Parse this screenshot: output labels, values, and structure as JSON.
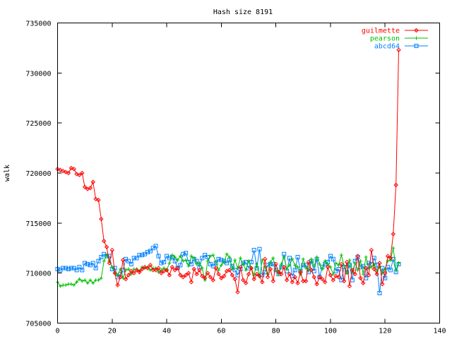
{
  "chart_data": {
    "type": "line",
    "title": "Hash size 8191",
    "xlabel": "",
    "ylabel": "walk",
    "xlim": [
      0,
      140
    ],
    "ylim": [
      705000,
      735000
    ],
    "xticks": [
      "0",
      "20",
      "40",
      "60",
      "80",
      "100",
      "120",
      "140"
    ],
    "yticks": [
      "705000",
      "710000",
      "715000",
      "720000",
      "725000",
      "730000",
      "735000"
    ],
    "grid": false,
    "legend": "top-right",
    "series": [
      {
        "name": "guilmette",
        "color": "#ff0000",
        "marker": "diamond",
        "x": [
          0,
          1,
          2,
          3,
          4,
          5,
          6,
          7,
          8,
          9,
          10,
          11,
          12,
          13,
          14,
          15,
          16,
          17,
          18,
          19,
          20,
          21,
          22,
          23,
          24,
          25,
          26,
          27,
          28,
          29,
          30,
          31,
          32,
          33,
          34,
          35,
          36,
          37,
          38,
          39,
          40,
          41,
          42,
          43,
          44,
          45,
          46,
          47,
          48,
          49,
          50,
          51,
          52,
          53,
          54,
          55,
          56,
          57,
          58,
          59,
          60,
          61,
          62,
          63,
          64,
          65,
          66,
          67,
          68,
          69,
          70,
          71,
          72,
          73,
          74,
          75,
          76,
          77,
          78,
          79,
          80,
          81,
          82,
          83,
          84,
          85,
          86,
          87,
          88,
          89,
          90,
          91,
          92,
          93,
          94,
          95,
          96,
          97,
          98,
          99,
          100,
          101,
          102,
          103,
          104,
          105,
          106,
          107,
          108,
          109,
          110,
          111,
          112,
          113,
          114,
          115,
          116,
          117,
          118,
          119,
          120,
          121,
          122,
          123,
          124,
          125
        ],
        "y": [
          720400,
          720300,
          720200,
          720100,
          720000,
          720500,
          720400,
          719900,
          719800,
          720000,
          718600,
          718400,
          718500,
          719100,
          717400,
          717300,
          715400,
          713200,
          712600,
          711000,
          712300,
          710000,
          708800,
          709600,
          711300,
          709400,
          709800,
          710200,
          710000,
          710300,
          710100,
          710400,
          710600,
          710500,
          710800,
          710300,
          710300,
          710500,
          710000,
          710200,
          710300,
          709800,
          710600,
          710300,
          710500,
          709800,
          709600,
          709800,
          710000,
          709100,
          710400,
          709900,
          710300,
          709700,
          709500,
          710000,
          709600,
          709300,
          710500,
          709900,
          709500,
          709700,
          710200,
          710300,
          709800,
          709400,
          708100,
          710600,
          709300,
          709000,
          709900,
          710500,
          709400,
          709900,
          709700,
          709100,
          711400,
          709600,
          710400,
          709200,
          710900,
          710100,
          709900,
          710600,
          709300,
          709900,
          709100,
          709600,
          709000,
          710100,
          709200,
          709200,
          711100,
          710300,
          709600,
          708900,
          709600,
          709400,
          709100,
          710600,
          709800,
          709300,
          709700,
          709600,
          710900,
          709200,
          711100,
          708700,
          710300,
          709900,
          711700,
          709500,
          709000,
          710500,
          709800,
          712300,
          710400,
          709900,
          711000,
          708900,
          710000,
          711700,
          711500,
          713900,
          718800,
          732300
        ]
      },
      {
        "name": "pearson",
        "color": "#00c000",
        "marker": "plus",
        "x": [
          0,
          1,
          2,
          3,
          4,
          5,
          6,
          7,
          8,
          9,
          10,
          11,
          12,
          13,
          14,
          15,
          16,
          17,
          18,
          19,
          20,
          21,
          22,
          23,
          24,
          25,
          26,
          27,
          28,
          29,
          30,
          31,
          32,
          33,
          34,
          35,
          36,
          37,
          38,
          39,
          40,
          41,
          42,
          43,
          44,
          45,
          46,
          47,
          48,
          49,
          50,
          51,
          52,
          53,
          54,
          55,
          56,
          57,
          58,
          59,
          60,
          61,
          62,
          63,
          64,
          65,
          66,
          67,
          68,
          69,
          70,
          71,
          72,
          73,
          74,
          75,
          76,
          77,
          78,
          79,
          80,
          81,
          82,
          83,
          84,
          85,
          86,
          87,
          88,
          89,
          90,
          91,
          92,
          93,
          94,
          95,
          96,
          97,
          98,
          99,
          100,
          101,
          102,
          103,
          104,
          105,
          106,
          107,
          108,
          109,
          110,
          111,
          112,
          113,
          114,
          115,
          116,
          117,
          118,
          119,
          120,
          121,
          122,
          123,
          124,
          125
        ],
        "y": [
          709100,
          708700,
          708800,
          708800,
          708900,
          708900,
          708800,
          709100,
          709400,
          709200,
          709300,
          709000,
          709300,
          709000,
          709300,
          709300,
          709500,
          711200,
          711800,
          711200,
          710600,
          710000,
          709800,
          710400,
          709500,
          710300,
          710400,
          709900,
          710400,
          710400,
          710200,
          710600,
          710500,
          710600,
          710300,
          710500,
          710500,
          710100,
          710300,
          710500,
          710300,
          711000,
          711800,
          711600,
          711300,
          711700,
          711200,
          711300,
          710700,
          711700,
          711500,
          710900,
          711000,
          710500,
          709300,
          711200,
          711700,
          711800,
          711100,
          710300,
          710800,
          711100,
          711900,
          711600,
          710400,
          711300,
          710500,
          711500,
          710900,
          710300,
          711200,
          710500,
          709800,
          710900,
          709700,
          711300,
          710600,
          709900,
          711100,
          711500,
          710300,
          709900,
          710900,
          711600,
          710400,
          710800,
          711400,
          710800,
          710600,
          709900,
          711400,
          710500,
          710300,
          711400,
          710700,
          711600,
          710900,
          710400,
          711200,
          710900,
          710600,
          709900,
          711000,
          710800,
          711800,
          710700,
          710000,
          711300,
          710100,
          711000,
          710300,
          711200,
          709900,
          711600,
          710500,
          710600,
          710900,
          710200,
          710600,
          710000,
          710400,
          711200,
          711300,
          712500,
          710300,
          711000
        ]
      },
      {
        "name": "abcd64",
        "color": "#0080ff",
        "marker": "square",
        "x": [
          0,
          1,
          2,
          3,
          4,
          5,
          6,
          7,
          8,
          9,
          10,
          11,
          12,
          13,
          14,
          15,
          16,
          17,
          18,
          19,
          20,
          21,
          22,
          23,
          24,
          25,
          26,
          27,
          28,
          29,
          30,
          31,
          32,
          33,
          34,
          35,
          36,
          37,
          38,
          39,
          40,
          41,
          42,
          43,
          44,
          45,
          46,
          47,
          48,
          49,
          50,
          51,
          52,
          53,
          54,
          55,
          56,
          57,
          58,
          59,
          60,
          61,
          62,
          63,
          64,
          65,
          66,
          67,
          68,
          69,
          70,
          71,
          72,
          73,
          74,
          75,
          76,
          77,
          78,
          79,
          80,
          81,
          82,
          83,
          84,
          85,
          86,
          87,
          88,
          89,
          90,
          91,
          92,
          93,
          94,
          95,
          96,
          97,
          98,
          99,
          100,
          101,
          102,
          103,
          104,
          105,
          106,
          107,
          108,
          109,
          110,
          111,
          112,
          113,
          114,
          115,
          116,
          117,
          118,
          119,
          120,
          121,
          122,
          123,
          124,
          125
        ],
        "y": [
          710400,
          710300,
          710500,
          710500,
          710400,
          710500,
          710500,
          710300,
          710600,
          710300,
          711000,
          710900,
          710800,
          711000,
          710500,
          711200,
          711600,
          711900,
          711700,
          711700,
          710400,
          710500,
          709600,
          709900,
          710300,
          711400,
          711200,
          710900,
          711500,
          711500,
          711800,
          711800,
          711900,
          712100,
          712200,
          712500,
          712700,
          711700,
          711000,
          711100,
          711700,
          711500,
          711600,
          711200,
          710500,
          710800,
          711900,
          712000,
          711100,
          710900,
          711400,
          711200,
          710600,
          711500,
          711800,
          711600,
          710900,
          710700,
          711000,
          711400,
          711300,
          711200,
          711000,
          711300,
          710700,
          710300,
          709800,
          710400,
          711000,
          711100,
          710500,
          711100,
          712300,
          710500,
          712400,
          709800,
          710100,
          710800,
          710900,
          710900,
          710300,
          709900,
          710600,
          711900,
          710200,
          711500,
          709700,
          710300,
          711600,
          710200,
          710800,
          710800,
          710100,
          711200,
          710200,
          711400,
          709600,
          710600,
          710900,
          711100,
          711700,
          711400,
          710200,
          710400,
          709300,
          710600,
          710100,
          710800,
          709300,
          711200,
          711600,
          710600,
          710700,
          709500,
          711000,
          710900,
          711500,
          710800,
          708000,
          710500,
          709500,
          710600,
          710300,
          711400,
          710100,
          710900
        ]
      }
    ]
  }
}
